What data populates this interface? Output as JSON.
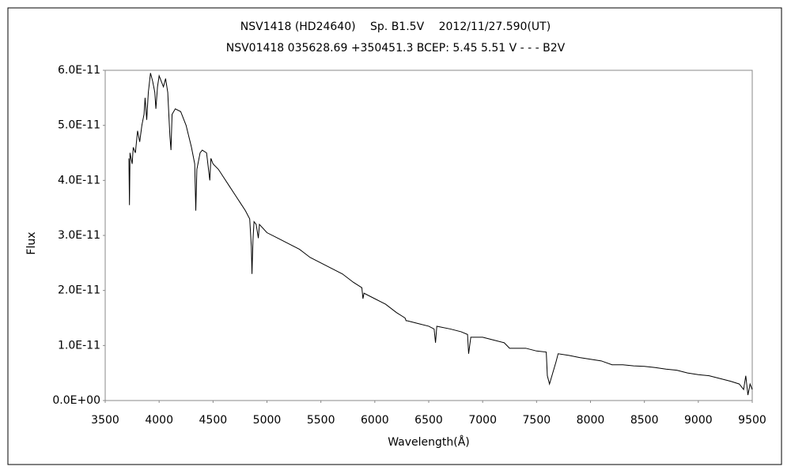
{
  "chart_data": {
    "type": "line",
    "title": "NSV1418 (HD24640)　 Sp. B1.5V　 2012/11/27.590(UT)",
    "subtitle": "NSV01418 035628.69 +350451.3 BCEP: 5.45 5.51 V - - - B2V",
    "x_label": "Wavelength(Å)",
    "y_label": "Flux",
    "x": [
      3720,
      3725,
      3730,
      3750,
      3760,
      3780,
      3800,
      3820,
      3840,
      3860,
      3870,
      3885,
      3900,
      3920,
      3940,
      3960,
      3970,
      3985,
      4000,
      4020,
      4040,
      4060,
      4080,
      4100,
      4110,
      4120,
      4150,
      4200,
      4250,
      4300,
      4330,
      4340,
      4350,
      4380,
      4400,
      4440,
      4470,
      4480,
      4500,
      4550,
      4600,
      4650,
      4700,
      4750,
      4800,
      4840,
      4855,
      4861,
      4870,
      4880,
      4900,
      4920,
      4930,
      5000,
      5100,
      5200,
      5300,
      5400,
      5500,
      5600,
      5700,
      5800,
      5880,
      5890,
      5900,
      6000,
      6100,
      6200,
      6280,
      6290,
      6300,
      6400,
      6500,
      6550,
      6563,
      6575,
      6700,
      6800,
      6860,
      6870,
      6890,
      7000,
      7100,
      7200,
      7250,
      7300,
      7400,
      7500,
      7590,
      7600,
      7620,
      7650,
      7680,
      7700,
      7800,
      7900,
      8000,
      8100,
      8200,
      8300,
      8400,
      8500,
      8600,
      8700,
      8800,
      8900,
      9000,
      9100,
      9200,
      9300,
      9380,
      9420,
      9440,
      9460,
      9480,
      9500
    ],
    "series": [
      {
        "color": "#000000",
        "values": [
          4.4e-11,
          3.55e-11,
          4.5e-11,
          4.3e-11,
          4.6e-11,
          4.5e-11,
          4.9e-11,
          4.7e-11,
          5e-11,
          5.2e-11,
          5.5e-11,
          5.1e-11,
          5.6e-11,
          5.95e-11,
          5.8e-11,
          5.6e-11,
          5.3e-11,
          5.7e-11,
          5.9e-11,
          5.8e-11,
          5.7e-11,
          5.85e-11,
          5.6e-11,
          4.8e-11,
          4.55e-11,
          5.2e-11,
          5.3e-11,
          5.25e-11,
          5e-11,
          4.6e-11,
          4.3e-11,
          3.45e-11,
          4.2e-11,
          4.5e-11,
          4.55e-11,
          4.5e-11,
          4e-11,
          4.4e-11,
          4.3e-11,
          4.2e-11,
          4.05e-11,
          3.9e-11,
          3.75e-11,
          3.6e-11,
          3.45e-11,
          3.3e-11,
          2.8e-11,
          2.3e-11,
          2.9e-11,
          3.25e-11,
          3.2e-11,
          2.95e-11,
          3.2e-11,
          3.05e-11,
          2.95e-11,
          2.85e-11,
          2.75e-11,
          2.6e-11,
          2.5e-11,
          2.4e-11,
          2.3e-11,
          2.15e-11,
          2.05e-11,
          1.85e-11,
          1.95e-11,
          1.85e-11,
          1.75e-11,
          1.6e-11,
          1.5e-11,
          1.45e-11,
          1.45e-11,
          1.4e-11,
          1.35e-11,
          1.3e-11,
          1.05e-11,
          1.35e-11,
          1.3e-11,
          1.25e-11,
          1.2e-11,
          8.5e-12,
          1.15e-11,
          1.15e-11,
          1.1e-11,
          1.05e-11,
          9.5e-12,
          9.5e-12,
          9.5e-12,
          9e-12,
          8.8e-12,
          4.5e-12,
          3e-12,
          5e-12,
          7e-12,
          8.5e-12,
          8.2e-12,
          7.8e-12,
          7.5e-12,
          7.2e-12,
          6.5e-12,
          6.5e-12,
          6.3e-12,
          6.2e-12,
          6e-12,
          5.7e-12,
          5.5e-12,
          5e-12,
          4.7e-12,
          4.5e-12,
          4e-12,
          3.5e-12,
          3e-12,
          2e-12,
          4.5e-12,
          1e-12,
          3e-12,
          2e-12
        ]
      }
    ],
    "xlim": [
      3500,
      9500
    ],
    "xticks": [
      3500,
      4000,
      4500,
      5000,
      5500,
      6000,
      6500,
      7000,
      7500,
      8000,
      8500,
      9000,
      9500
    ],
    "ylim": [
      0,
      6e-11
    ],
    "yticks": [
      {
        "value": 0,
        "label": "0.0E+00"
      },
      {
        "value": 1e-11,
        "label": "1.0E-11"
      },
      {
        "value": 2e-11,
        "label": "2.0E-11"
      },
      {
        "value": 3e-11,
        "label": "3.0E-11"
      },
      {
        "value": 4e-11,
        "label": "4.0E-11"
      },
      {
        "value": 5e-11,
        "label": "5.0E-11"
      },
      {
        "value": 6e-11,
        "label": "6.0E-11"
      }
    ],
    "grid": false
  }
}
